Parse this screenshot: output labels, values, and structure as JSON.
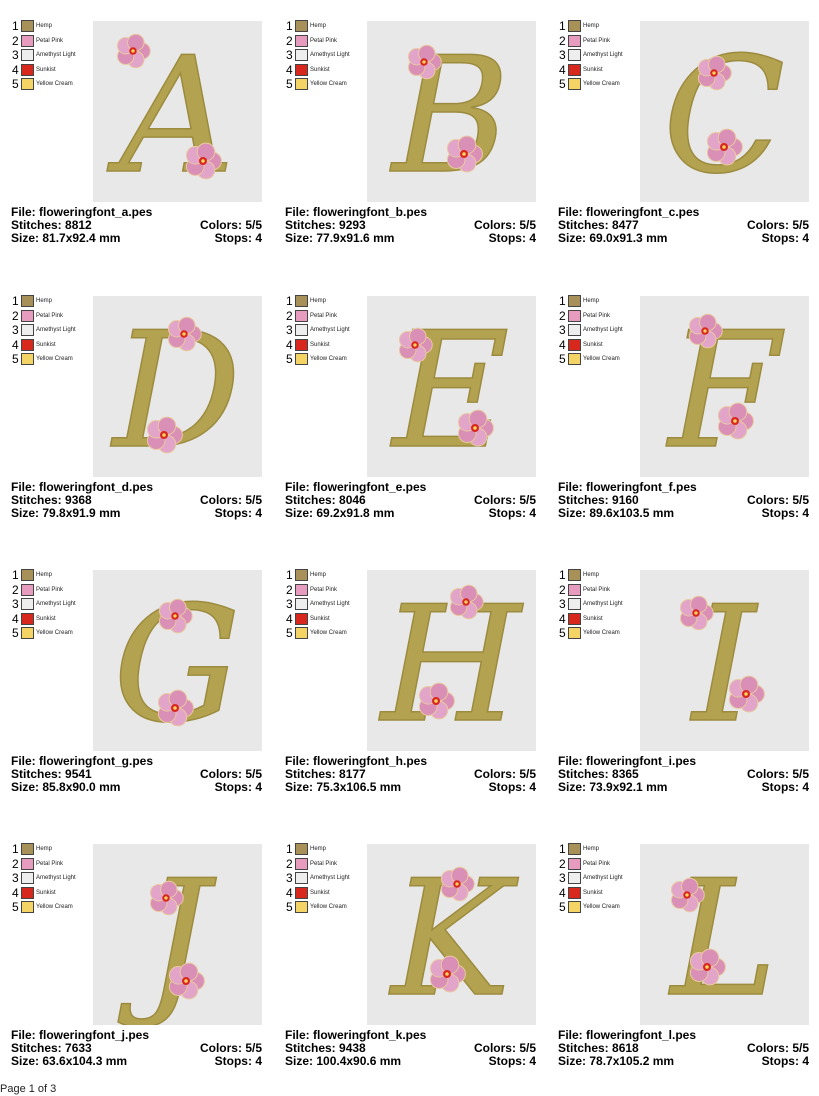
{
  "legend": [
    {
      "num": "1",
      "name": "Hemp",
      "color": "#a89158"
    },
    {
      "num": "2",
      "name": "Petal Pink",
      "color": "#e79cbf"
    },
    {
      "num": "3",
      "name": "Amethyst Light",
      "color": "#eeeeee"
    },
    {
      "num": "4",
      "name": "Sunkist",
      "color": "#d8281e"
    },
    {
      "num": "5",
      "name": "Yellow Cream",
      "color": "#f3d464"
    }
  ],
  "labels": {
    "file": "File: ",
    "stitches": "Stitches: ",
    "size": "Size: ",
    "colors": "Colors: ",
    "stops": "Stops: "
  },
  "designs": [
    {
      "letter": "A",
      "file": "floweringfont_a.pes",
      "stitches": "8812",
      "size": "81.7x92.4 mm",
      "colors": "5/5",
      "stops": "4"
    },
    {
      "letter": "B",
      "file": "floweringfont_b.pes",
      "stitches": "9293",
      "size": "77.9x91.6 mm",
      "colors": "5/5",
      "stops": "4"
    },
    {
      "letter": "C",
      "file": "floweringfont_c.pes",
      "stitches": "8477",
      "size": "69.0x91.3 mm",
      "colors": "5/5",
      "stops": "4"
    },
    {
      "letter": "D",
      "file": "floweringfont_d.pes",
      "stitches": "9368",
      "size": "79.8x91.9 mm",
      "colors": "5/5",
      "stops": "4"
    },
    {
      "letter": "E",
      "file": "floweringfont_e.pes",
      "stitches": "8046",
      "size": "69.2x91.8 mm",
      "colors": "5/5",
      "stops": "4"
    },
    {
      "letter": "F",
      "file": "floweringfont_f.pes",
      "stitches": "9160",
      "size": "89.6x103.5 mm",
      "colors": "5/5",
      "stops": "4"
    },
    {
      "letter": "G",
      "file": "floweringfont_g.pes",
      "stitches": "9541",
      "size": "85.8x90.0 mm",
      "colors": "5/5",
      "stops": "4"
    },
    {
      "letter": "H",
      "file": "floweringfont_h.pes",
      "stitches": "8177",
      "size": "75.3x106.5 mm",
      "colors": "5/5",
      "stops": "4"
    },
    {
      "letter": "I",
      "file": "floweringfont_i.pes",
      "stitches": "8365",
      "size": "73.9x92.1 mm",
      "colors": "5/5",
      "stops": "4"
    },
    {
      "letter": "J",
      "file": "floweringfont_j.pes",
      "stitches": "7633",
      "size": "63.6x104.3 mm",
      "colors": "5/5",
      "stops": "4"
    },
    {
      "letter": "K",
      "file": "floweringfont_k.pes",
      "stitches": "9438",
      "size": "100.4x90.6 mm",
      "colors": "5/5",
      "stops": "4"
    },
    {
      "letter": "L",
      "file": "floweringfont_l.pes",
      "stitches": "8618",
      "size": "78.7x105.2 mm",
      "colors": "5/5",
      "stops": "4"
    }
  ],
  "footer": "Page 1 of 3"
}
